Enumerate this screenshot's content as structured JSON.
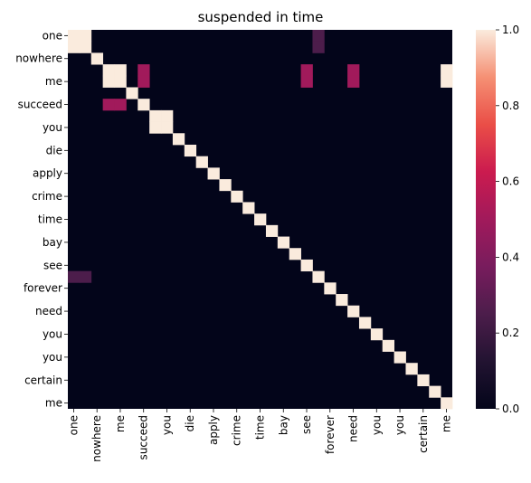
{
  "chart_data": {
    "type": "heatmap",
    "title": "suspended in time",
    "xlabel": "",
    "ylabel": "",
    "x_labels": [
      "one",
      "one",
      "nowhere",
      "me",
      "me",
      "succeed",
      "succeed",
      "you",
      "you",
      "die",
      "die",
      "apply",
      "apply",
      "crime",
      "crime",
      "time",
      "time",
      "bay",
      "bay",
      "see",
      "see",
      "forever",
      "forever",
      "need",
      "need",
      "you",
      "you",
      "you",
      "you",
      "certain",
      "certain",
      "me",
      "me"
    ],
    "y_labels": [
      "one",
      "one",
      "nowhere",
      "me",
      "me",
      "succeed",
      "succeed",
      "you",
      "you",
      "die",
      "die",
      "apply",
      "apply",
      "crime",
      "crime",
      "time",
      "time",
      "bay",
      "bay",
      "see",
      "see",
      "forever",
      "forever",
      "need",
      "need",
      "you",
      "you",
      "you",
      "you",
      "certain",
      "certain",
      "me",
      "me"
    ],
    "x_tick_labels": [
      "one",
      "nowhere",
      "me",
      "succeed",
      "you",
      "die",
      "apply",
      "crime",
      "time",
      "bay",
      "see",
      "forever",
      "need",
      "you",
      "you",
      "certain",
      "me"
    ],
    "y_tick_labels": [
      "one",
      "nowhere",
      "me",
      "succeed",
      "you",
      "die",
      "apply",
      "crime",
      "time",
      "bay",
      "see",
      "forever",
      "need",
      "you",
      "you",
      "certain",
      "me"
    ],
    "colorbar": {
      "min": 0.0,
      "max": 1.0,
      "ticks": [
        "0.0",
        "0.2",
        "0.4",
        "0.6",
        "0.8",
        "1.0"
      ]
    },
    "values": [
      [
        1,
        1,
        0,
        0,
        0,
        0,
        0,
        0,
        0,
        0,
        0,
        0,
        0,
        0,
        0,
        0,
        0,
        0,
        0,
        0,
        0,
        0.25,
        0,
        0,
        0,
        0,
        0,
        0,
        0,
        0,
        0,
        0,
        0
      ],
      [
        1,
        1,
        0,
        0,
        0,
        0,
        0,
        0,
        0,
        0,
        0,
        0,
        0,
        0,
        0,
        0,
        0,
        0,
        0,
        0,
        0,
        0.25,
        0,
        0,
        0,
        0,
        0,
        0,
        0,
        0,
        0,
        0,
        0
      ],
      [
        0,
        0,
        1,
        0,
        0,
        0,
        0,
        0,
        0,
        0,
        0,
        0,
        0,
        0,
        0,
        0,
        0,
        0,
        0,
        0,
        0,
        0,
        0,
        0,
        0,
        0,
        0,
        0,
        0,
        0,
        0,
        0,
        0
      ],
      [
        0,
        0,
        0,
        1,
        1,
        0,
        0.5,
        0,
        0,
        0,
        0,
        0,
        0,
        0,
        0,
        0,
        0,
        0,
        0,
        0,
        0.5,
        0,
        0,
        0,
        0.5,
        0,
        0,
        0,
        0,
        0,
        0,
        0,
        1
      ],
      [
        0,
        0,
        0,
        1,
        1,
        0,
        0.5,
        0,
        0,
        0,
        0,
        0,
        0,
        0,
        0,
        0,
        0,
        0,
        0,
        0,
        0.5,
        0,
        0,
        0,
        0.5,
        0,
        0,
        0,
        0,
        0,
        0,
        0,
        1
      ],
      [
        0,
        0,
        0,
        0,
        0,
        1,
        0,
        0,
        0,
        0,
        0,
        0,
        0,
        0,
        0,
        0,
        0,
        0,
        0,
        0,
        0,
        0,
        0,
        0,
        0,
        0,
        0,
        0,
        0,
        0,
        0,
        0,
        0
      ],
      [
        0,
        0,
        0,
        0.5,
        0.5,
        0,
        1,
        0,
        0,
        0,
        0,
        0,
        0,
        0,
        0,
        0,
        0,
        0,
        0,
        0,
        0,
        0,
        0,
        0,
        0,
        0,
        0,
        0,
        0,
        0,
        0,
        0,
        0
      ],
      [
        0,
        0,
        0,
        0,
        0,
        0,
        0,
        1,
        1,
        0,
        0,
        0,
        0,
        0,
        0,
        0,
        0,
        0,
        0,
        0,
        0,
        0,
        0,
        0,
        0,
        0,
        0,
        0,
        0,
        0,
        0,
        0,
        0
      ],
      [
        0,
        0,
        0,
        0,
        0,
        0,
        0,
        1,
        1,
        0,
        0,
        0,
        0,
        0,
        0,
        0,
        0,
        0,
        0,
        0,
        0,
        0,
        0,
        0,
        0,
        0,
        0,
        0,
        0,
        0,
        0,
        0,
        0
      ],
      [
        0,
        0,
        0,
        0,
        0,
        0,
        0,
        0,
        0,
        1,
        0,
        0,
        0,
        0,
        0,
        0,
        0,
        0,
        0,
        0,
        0,
        0,
        0,
        0,
        0,
        0,
        0,
        0,
        0,
        0,
        0,
        0,
        0
      ],
      [
        0,
        0,
        0,
        0,
        0,
        0,
        0,
        0,
        0,
        0,
        1,
        0,
        0,
        0,
        0,
        0,
        0,
        0,
        0,
        0,
        0,
        0,
        0,
        0,
        0,
        0,
        0,
        0,
        0,
        0,
        0,
        0,
        0
      ],
      [
        0,
        0,
        0,
        0,
        0,
        0,
        0,
        0,
        0,
        0,
        0,
        1,
        0,
        0,
        0,
        0,
        0,
        0,
        0,
        0,
        0,
        0,
        0,
        0,
        0,
        0,
        0,
        0,
        0,
        0,
        0,
        0,
        0
      ],
      [
        0,
        0,
        0,
        0,
        0,
        0,
        0,
        0,
        0,
        0,
        0,
        0,
        1,
        0,
        0,
        0,
        0,
        0,
        0,
        0,
        0,
        0,
        0,
        0,
        0,
        0,
        0,
        0,
        0,
        0,
        0,
        0,
        0
      ],
      [
        0,
        0,
        0,
        0,
        0,
        0,
        0,
        0,
        0,
        0,
        0,
        0,
        0,
        1,
        0,
        0,
        0,
        0,
        0,
        0,
        0,
        0,
        0,
        0,
        0,
        0,
        0,
        0,
        0,
        0,
        0,
        0,
        0
      ],
      [
        0,
        0,
        0,
        0,
        0,
        0,
        0,
        0,
        0,
        0,
        0,
        0,
        0,
        0,
        1,
        0,
        0,
        0,
        0,
        0,
        0,
        0,
        0,
        0,
        0,
        0,
        0,
        0,
        0,
        0,
        0,
        0,
        0
      ],
      [
        0,
        0,
        0,
        0,
        0,
        0,
        0,
        0,
        0,
        0,
        0,
        0,
        0,
        0,
        0,
        1,
        0,
        0,
        0,
        0,
        0,
        0,
        0,
        0,
        0,
        0,
        0,
        0,
        0,
        0,
        0,
        0,
        0
      ],
      [
        0,
        0,
        0,
        0,
        0,
        0,
        0,
        0,
        0,
        0,
        0,
        0,
        0,
        0,
        0,
        0,
        1,
        0,
        0,
        0,
        0,
        0,
        0,
        0,
        0,
        0,
        0,
        0,
        0,
        0,
        0,
        0,
        0
      ],
      [
        0,
        0,
        0,
        0,
        0,
        0,
        0,
        0,
        0,
        0,
        0,
        0,
        0,
        0,
        0,
        0,
        0,
        1,
        0,
        0,
        0,
        0,
        0,
        0,
        0,
        0,
        0,
        0,
        0,
        0,
        0,
        0,
        0
      ],
      [
        0,
        0,
        0,
        0,
        0,
        0,
        0,
        0,
        0,
        0,
        0,
        0,
        0,
        0,
        0,
        0,
        0,
        0,
        1,
        0,
        0,
        0,
        0,
        0,
        0,
        0,
        0,
        0,
        0,
        0,
        0,
        0,
        0
      ],
      [
        0,
        0,
        0,
        0,
        0,
        0,
        0,
        0,
        0,
        0,
        0,
        0,
        0,
        0,
        0,
        0,
        0,
        0,
        0,
        1,
        0,
        0,
        0,
        0,
        0,
        0,
        0,
        0,
        0,
        0,
        0,
        0,
        0
      ],
      [
        0,
        0,
        0,
        0,
        0,
        0,
        0,
        0,
        0,
        0,
        0,
        0,
        0,
        0,
        0,
        0,
        0,
        0,
        0,
        0,
        1,
        0,
        0,
        0,
        0,
        0,
        0,
        0,
        0,
        0,
        0,
        0,
        0
      ],
      [
        0.25,
        0.25,
        0,
        0,
        0,
        0,
        0,
        0,
        0,
        0,
        0,
        0,
        0,
        0,
        0,
        0,
        0,
        0,
        0,
        0,
        0,
        1,
        0,
        0,
        0,
        0,
        0,
        0,
        0,
        0,
        0,
        0,
        0
      ],
      [
        0,
        0,
        0,
        0,
        0,
        0,
        0,
        0,
        0,
        0,
        0,
        0,
        0,
        0,
        0,
        0,
        0,
        0,
        0,
        0,
        0,
        0,
        1,
        0,
        0,
        0,
        0,
        0,
        0,
        0,
        0,
        0,
        0
      ],
      [
        0,
        0,
        0,
        0,
        0,
        0,
        0,
        0,
        0,
        0,
        0,
        0,
        0,
        0,
        0,
        0,
        0,
        0,
        0,
        0,
        0,
        0,
        0,
        1,
        0,
        0,
        0,
        0,
        0,
        0,
        0,
        0,
        0
      ],
      [
        0,
        0,
        0,
        0,
        0,
        0,
        0,
        0,
        0,
        0,
        0,
        0,
        0,
        0,
        0,
        0,
        0,
        0,
        0,
        0,
        0,
        0,
        0,
        0,
        1,
        0,
        0,
        0,
        0,
        0,
        0,
        0,
        0
      ],
      [
        0,
        0,
        0,
        0,
        0,
        0,
        0,
        0,
        0,
        0,
        0,
        0,
        0,
        0,
        0,
        0,
        0,
        0,
        0,
        0,
        0,
        0,
        0,
        0,
        0,
        1,
        0,
        0,
        0,
        0,
        0,
        0,
        0
      ],
      [
        0,
        0,
        0,
        0,
        0,
        0,
        0,
        0,
        0,
        0,
        0,
        0,
        0,
        0,
        0,
        0,
        0,
        0,
        0,
        0,
        0,
        0,
        0,
        0,
        0,
        0,
        1,
        0,
        0,
        0,
        0,
        0,
        0
      ],
      [
        0,
        0,
        0,
        0,
        0,
        0,
        0,
        0,
        0,
        0,
        0,
        0,
        0,
        0,
        0,
        0,
        0,
        0,
        0,
        0,
        0,
        0,
        0,
        0,
        0,
        0,
        0,
        1,
        0,
        0,
        0,
        0,
        0
      ],
      [
        0,
        0,
        0,
        0,
        0,
        0,
        0,
        0,
        0,
        0,
        0,
        0,
        0,
        0,
        0,
        0,
        0,
        0,
        0,
        0,
        0,
        0,
        0,
        0,
        0,
        0,
        0,
        0,
        1,
        0,
        0,
        0,
        0
      ],
      [
        0,
        0,
        0,
        0,
        0,
        0,
        0,
        0,
        0,
        0,
        0,
        0,
        0,
        0,
        0,
        0,
        0,
        0,
        0,
        0,
        0,
        0,
        0,
        0,
        0,
        0,
        0,
        0,
        0,
        1,
        0,
        0,
        0
      ],
      [
        0,
        0,
        0,
        0,
        0,
        0,
        0,
        0,
        0,
        0,
        0,
        0,
        0,
        0,
        0,
        0,
        0,
        0,
        0,
        0,
        0,
        0,
        0,
        0,
        0,
        0,
        0,
        0,
        0,
        0,
        1,
        0,
        0
      ],
      [
        0,
        0,
        0,
        0,
        0,
        0,
        0,
        0,
        0,
        0,
        0,
        0,
        0,
        0,
        0,
        0,
        0,
        0,
        0,
        0,
        0,
        0,
        0,
        0,
        0,
        0,
        0,
        0,
        0,
        0,
        0,
        1,
        0
      ],
      [
        0,
        0,
        0,
        0,
        0,
        0,
        0,
        0,
        0,
        0,
        0,
        0,
        0,
        0,
        0,
        0,
        0,
        0,
        0,
        0,
        0,
        0,
        0,
        0,
        0,
        0,
        0,
        0,
        0,
        0,
        0,
        0,
        1
      ]
    ]
  }
}
